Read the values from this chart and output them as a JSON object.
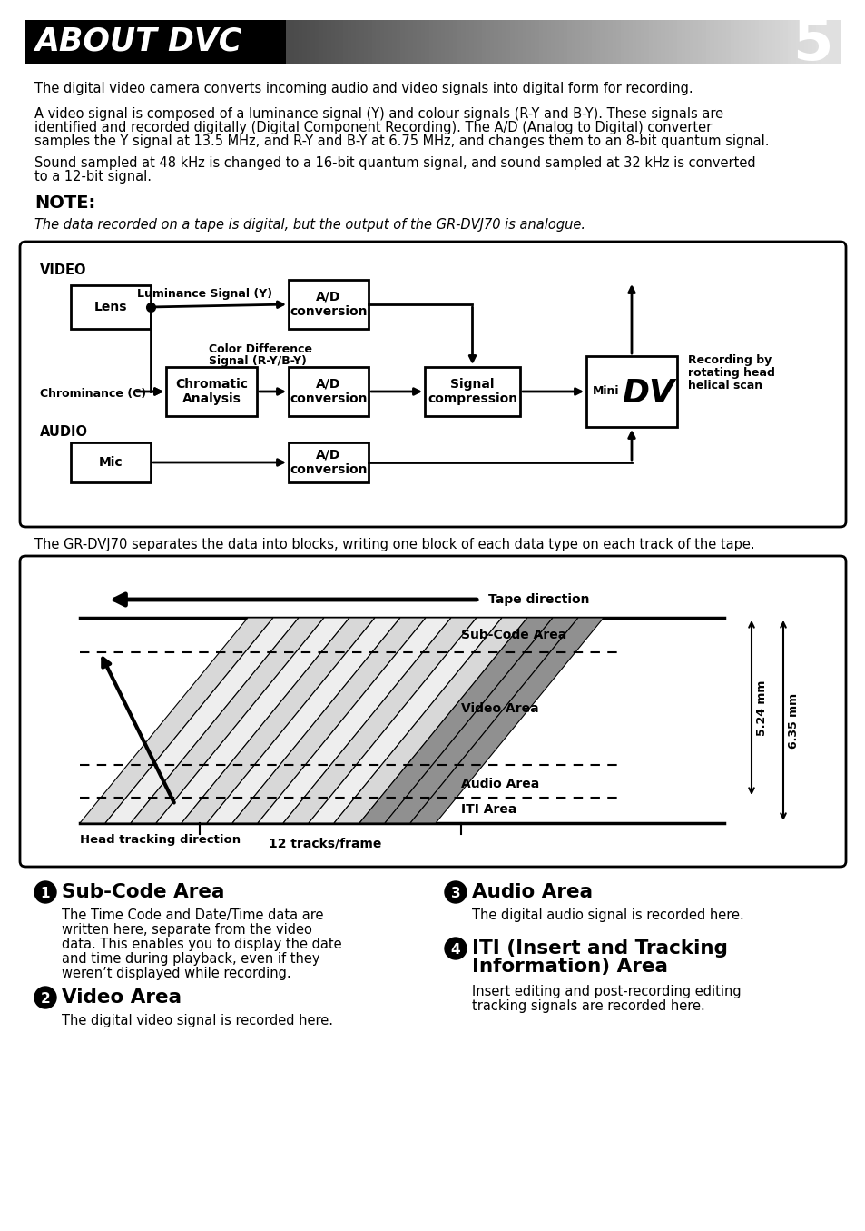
{
  "title_text": "ABOUT DVC",
  "page_number": "5",
  "para1": "The digital video camera converts incoming audio and video signals into digital form for recording.",
  "para2_lines": [
    "A video signal is composed of a luminance signal (Y) and colour signals (R-Y and B-Y). These signals are",
    "identified and recorded digitally (Digital Component Recording). The A/D (Analog to Digital) converter",
    "samples the Y signal at 13.5 MHz, and R-Y and B-Y at 6.75 MHz, and changes them to an 8-bit quantum signal."
  ],
  "para3_lines": [
    "Sound sampled at 48 kHz is changed to a 16-bit quantum signal, and sound sampled at 32 kHz is converted",
    "to a 12-bit signal."
  ],
  "note_label": "NOTE:",
  "note_text": "The data recorded on a tape is digital, but the output of the GR-DVJ70 is analogue.",
  "para4": "The GR-DVJ70 separates the data into blocks, writing one block of each data type on each track of the tape.",
  "bullet1_title": "Sub-Code Area",
  "bullet1_lines": [
    "The Time Code and Date/Time data are",
    "written here, separate from the video",
    "data. This enables you to display the date",
    "and time during playback, even if they",
    "weren’t displayed while recording."
  ],
  "bullet2_title": "Video Area",
  "bullet2_text": "The digital video signal is recorded here.",
  "bullet3_title": "Audio Area",
  "bullet3_text": "The digital audio signal is recorded here.",
  "bullet4_title_lines": [
    "ITI (Insert and Tracking",
    "Information) Area"
  ],
  "bullet4_lines": [
    "Insert editing and post-recording editing",
    "tracking signals are recorded here."
  ],
  "bg_color": "#ffffff"
}
